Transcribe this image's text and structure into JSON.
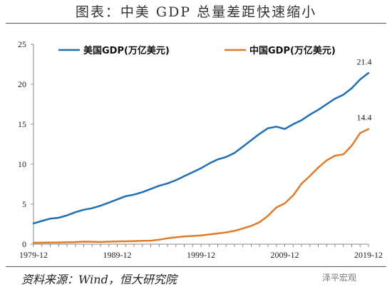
{
  "page": {
    "title": "图表：中美 GDP 总量差距快速缩小",
    "source": "资料来源：Wind，恒大研究院",
    "watermark": "泽平宏观"
  },
  "colors": {
    "us": "#1f6fb2",
    "china": "#e07b2a",
    "axis": "#888888"
  },
  "chart_data": {
    "type": "line",
    "title": "图表：中美 GDP 总量差距快速缩小",
    "xlabel": "",
    "ylabel": "",
    "x": [
      1979,
      1980,
      1981,
      1982,
      1983,
      1984,
      1985,
      1986,
      1987,
      1988,
      1989,
      1990,
      1991,
      1992,
      1993,
      1994,
      1995,
      1996,
      1997,
      1998,
      1999,
      2000,
      2001,
      2002,
      2003,
      2004,
      2005,
      2006,
      2007,
      2008,
      2009,
      2010,
      2011,
      2012,
      2013,
      2014,
      2015,
      2016,
      2017,
      2018,
      2019
    ],
    "xlim": [
      1979,
      2019
    ],
    "ylim": [
      0,
      25
    ],
    "x_ticks": [
      "1979-12",
      "1989-12",
      "1999-12",
      "2009-12",
      "2019-12"
    ],
    "x_tick_values": [
      1979,
      1989,
      1999,
      2009,
      2019
    ],
    "y_ticks": [
      "0",
      "5",
      "10",
      "15",
      "20",
      "25"
    ],
    "y_tick_values": [
      0,
      5,
      10,
      15,
      20,
      25
    ],
    "legend_position": "top",
    "grid": false,
    "series": [
      {
        "name": "美国GDP(万亿美元)",
        "values": [
          2.6,
          2.9,
          3.2,
          3.3,
          3.6,
          4.0,
          4.3,
          4.5,
          4.8,
          5.2,
          5.6,
          6.0,
          6.2,
          6.5,
          6.9,
          7.3,
          7.6,
          8.0,
          8.5,
          9.0,
          9.5,
          10.1,
          10.6,
          10.9,
          11.4,
          12.2,
          13.0,
          13.8,
          14.5,
          14.7,
          14.4,
          15.0,
          15.5,
          16.2,
          16.8,
          17.5,
          18.2,
          18.7,
          19.5,
          20.6,
          21.4
        ],
        "end_label": "21.4"
      },
      {
        "name": "中国GDP(万亿美元)",
        "values": [
          0.18,
          0.19,
          0.2,
          0.21,
          0.23,
          0.26,
          0.31,
          0.3,
          0.27,
          0.31,
          0.35,
          0.36,
          0.38,
          0.43,
          0.44,
          0.56,
          0.73,
          0.86,
          0.96,
          1.03,
          1.09,
          1.21,
          1.34,
          1.47,
          1.66,
          1.96,
          2.29,
          2.75,
          3.55,
          4.59,
          5.1,
          6.09,
          7.55,
          8.53,
          9.57,
          10.48,
          11.06,
          11.23,
          12.31,
          13.89,
          14.4
        ],
        "end_label": "14.4"
      }
    ]
  }
}
